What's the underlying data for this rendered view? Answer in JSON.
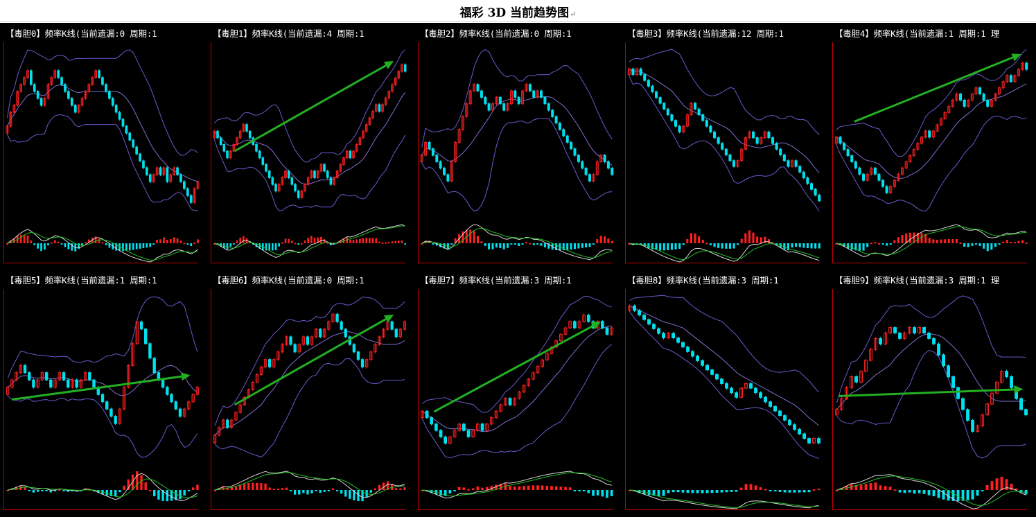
{
  "page": {
    "title": "福彩 3D 当前趋势图",
    "title_mark": "↵"
  },
  "colors": {
    "background": "#000000",
    "up_candle": "#ff2020",
    "down_candle": "#00e0ee",
    "band": "#6a5acd",
    "mid_band": "#8070d0",
    "trend_arrow": "#22b022",
    "macd_dif": "#d8d8d8",
    "macd_dea": "#20c020",
    "axis": "#c00000"
  },
  "chart_data": [
    {
      "type": "candlestick",
      "title": "【毒胆0】频率K线(当前遗漏:0 周期:1",
      "arrow": null,
      "close": [
        3,
        5,
        6,
        8,
        9,
        10,
        11,
        9,
        8,
        7,
        6,
        7,
        9,
        10,
        11,
        10,
        9,
        8,
        7,
        6,
        5,
        6,
        7,
        8,
        9,
        10,
        11,
        10,
        9,
        8,
        7,
        6,
        5,
        4,
        3,
        2,
        1,
        0,
        -1,
        -2,
        -3,
        -4,
        -5,
        -4,
        -3,
        -4,
        -3,
        -5,
        -4,
        -3,
        -4,
        -5,
        -6,
        -7,
        -8,
        -6,
        -5
      ]
    },
    {
      "type": "candlestick",
      "title": "【毒胆1】频率K线(当前遗漏:4 周期:1",
      "arrow": [
        0.12,
        0.62,
        0.94,
        0.1
      ],
      "close": [
        2,
        1,
        0,
        -1,
        -2,
        -1,
        0,
        1,
        2,
        3,
        2,
        1,
        0,
        -1,
        -2,
        -3,
        -4,
        -5,
        -6,
        -7,
        -6,
        -5,
        -4,
        -5,
        -6,
        -7,
        -8,
        -7,
        -6,
        -5,
        -4,
        -5,
        -4,
        -3,
        -4,
        -5,
        -6,
        -5,
        -4,
        -3,
        -2,
        -1,
        -2,
        -1,
        0,
        1,
        2,
        3,
        4,
        5,
        6,
        5,
        6,
        7,
        8,
        9,
        10,
        11,
        12,
        11
      ]
    },
    {
      "type": "candlestick",
      "title": "【毒胆2】频率K线(当前遗漏:0 周期:1",
      "arrow": null,
      "close": [
        2,
        4,
        3,
        2,
        1,
        0,
        -1,
        -2,
        1,
        4,
        6,
        8,
        10,
        12,
        13,
        12,
        11,
        10,
        9,
        10,
        11,
        10,
        9,
        10,
        12,
        11,
        10,
        12,
        13,
        12,
        11,
        12,
        11,
        10,
        9,
        8,
        7,
        6,
        5,
        4,
        3,
        2,
        1,
        0,
        -1,
        -2,
        -1,
        1,
        2,
        1,
        0,
        -1
      ]
    },
    {
      "type": "candlestick",
      "title": "【毒胆3】频率K线(当前遗漏:12 周期:1",
      "arrow": null,
      "close": [
        15,
        14,
        15,
        14,
        13,
        12,
        11,
        10,
        9,
        8,
        7,
        6,
        5,
        4,
        5,
        7,
        9,
        8,
        7,
        6,
        5,
        4,
        3,
        2,
        1,
        0,
        -1,
        -2,
        -1,
        1,
        3,
        4,
        3,
        2,
        3,
        4,
        3,
        2,
        1,
        0,
        -1,
        -2,
        -1,
        -2,
        -3,
        -4,
        -5,
        -6,
        -7,
        -8
      ]
    },
    {
      "type": "candlestick",
      "title": "【毒胆4】频率K线(当前遗漏:1 周期:1 理",
      "arrow": [
        0.11,
        0.45,
        0.97,
        0.06
      ],
      "close": [
        4,
        3,
        2,
        1,
        0,
        -1,
        -2,
        -3,
        -2,
        -1,
        -2,
        -3,
        -4,
        -5,
        -4,
        -3,
        -2,
        -1,
        0,
        1,
        2,
        3,
        4,
        5,
        4,
        5,
        6,
        7,
        8,
        9,
        10,
        11,
        10,
        9,
        10,
        11,
        12,
        11,
        10,
        9,
        10,
        11,
        12,
        13,
        14,
        13,
        14,
        15,
        16,
        15
      ]
    },
    {
      "type": "candlestick",
      "title": "【毒胆5】频率K线(当前遗漏:1 周期:1",
      "arrow": [
        0.04,
        0.63,
        0.96,
        0.49
      ],
      "close": [
        1,
        2,
        3,
        4,
        3,
        2,
        1,
        2,
        3,
        2,
        1,
        2,
        3,
        2,
        1,
        2,
        1,
        2,
        3,
        2,
        1,
        0,
        -1,
        -2,
        -3,
        -4,
        -2,
        1,
        4,
        7,
        10,
        9,
        7,
        5,
        3,
        2,
        1,
        0,
        -1,
        -2,
        -3,
        -2,
        -1,
        0,
        1
      ]
    },
    {
      "type": "candlestick",
      "title": "【毒胆6】频率K线(当前遗漏:0 周期:1",
      "arrow": [
        0.12,
        0.66,
        0.94,
        0.14
      ],
      "close": [
        0,
        1,
        2,
        1,
        2,
        3,
        4,
        5,
        6,
        7,
        8,
        9,
        10,
        9,
        10,
        11,
        12,
        13,
        12,
        11,
        12,
        13,
        12,
        13,
        14,
        13,
        14,
        15,
        16,
        15,
        14,
        13,
        12,
        11,
        10,
        9,
        10,
        11,
        12,
        13,
        14,
        15,
        14,
        13,
        14,
        15
      ]
    },
    {
      "type": "candlestick",
      "title": "【毒胆7】频率K线(当前遗漏:3 周期:1",
      "arrow": [
        0.08,
        0.7,
        0.94,
        0.18
      ],
      "close": [
        4,
        3,
        2,
        1,
        0,
        -1,
        0,
        1,
        2,
        1,
        0,
        1,
        2,
        1,
        2,
        3,
        4,
        5,
        6,
        5,
        6,
        7,
        8,
        9,
        10,
        11,
        12,
        13,
        14,
        15,
        16,
        17,
        18,
        17,
        18,
        19,
        18,
        17,
        18,
        17,
        16,
        17
      ]
    },
    {
      "type": "candlestick",
      "title": "【毒胆8】频率K线(当前遗漏:3 周期:1",
      "arrow": null,
      "close": [
        18,
        17,
        16,
        15,
        14,
        13,
        12,
        11,
        12,
        11,
        10,
        9,
        8,
        7,
        6,
        5,
        4,
        3,
        2,
        1,
        0,
        -1,
        -2,
        0,
        1,
        0,
        -1,
        -2,
        -3,
        -4,
        -5,
        -6,
        -7,
        -8,
        -9,
        -10,
        -11,
        -12,
        -11,
        -12
      ]
    },
    {
      "type": "candlestick",
      "title": "【毒胆9】频率K线(当前遗漏:3 周期:1 理",
      "arrow": [
        0.03,
        0.61,
        0.98,
        0.57
      ],
      "close": [
        0,
        2,
        4,
        6,
        5,
        7,
        9,
        11,
        13,
        12,
        14,
        15,
        14,
        13,
        14,
        15,
        14,
        15,
        14,
        13,
        12,
        10,
        8,
        6,
        4,
        2,
        0,
        -2,
        -4,
        -3,
        -1,
        1,
        3,
        5,
        7,
        6,
        4,
        2,
        0,
        -1
      ]
    }
  ]
}
